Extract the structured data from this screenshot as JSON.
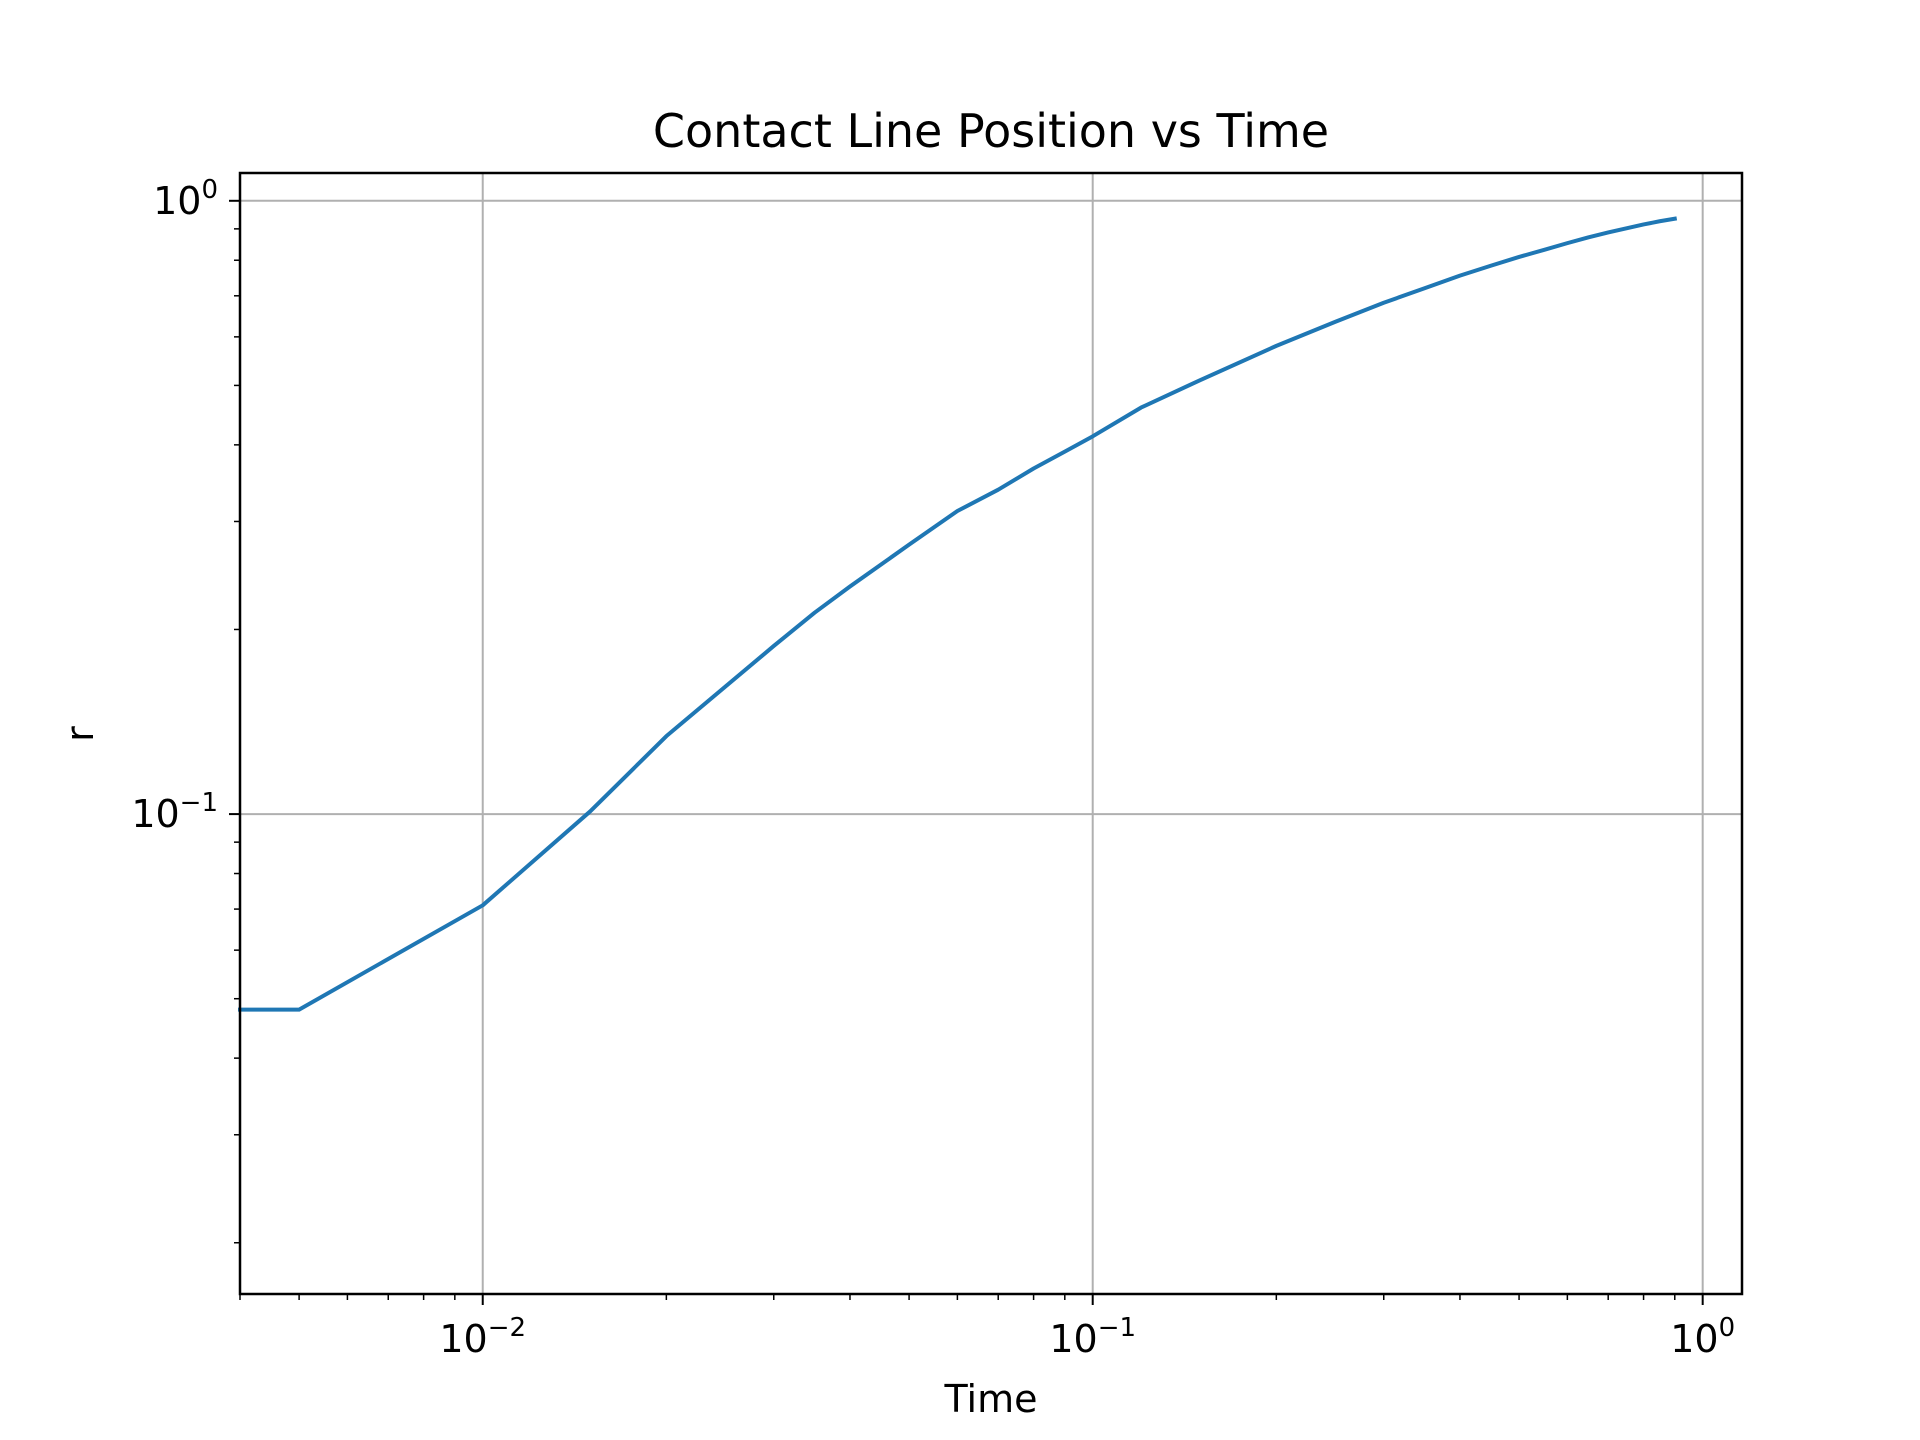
{
  "chart_data": {
    "type": "line",
    "title": "Contact Line Position vs Time",
    "xlabel": "Time",
    "ylabel": "r",
    "xscale": "log",
    "yscale": "log",
    "xlim": [
      0.004,
      1.16
    ],
    "ylim": [
      0.0165,
      1.11
    ],
    "grid": true,
    "x_ticks": [
      {
        "value": 0.01,
        "base": "10",
        "exp": "−2"
      },
      {
        "value": 0.1,
        "base": "10",
        "exp": "−1"
      },
      {
        "value": 1,
        "base": "10",
        "exp": "0"
      }
    ],
    "y_ticks": [
      {
        "value": 0.1,
        "base": "10",
        "exp": "−1"
      },
      {
        "value": 1,
        "base": "10",
        "exp": "0"
      }
    ],
    "colors": {
      "line": "#1f77b4",
      "grid": "#b0b0b0",
      "axes": "#000000"
    },
    "series": [
      {
        "x": [
          0.004,
          0.005,
          0.01,
          0.015,
          0.02,
          0.03,
          0.035,
          0.04,
          0.05,
          0.06,
          0.07,
          0.08,
          0.09,
          0.1,
          0.12,
          0.15,
          0.2,
          0.25,
          0.3,
          0.35,
          0.4,
          0.45,
          0.5,
          0.55,
          0.6,
          0.65,
          0.7,
          0.75,
          0.8,
          0.85,
          0.9
        ],
        "y": [
          0.048,
          0.048,
          0.071,
          0.101,
          0.134,
          0.188,
          0.213,
          0.235,
          0.275,
          0.312,
          0.338,
          0.366,
          0.39,
          0.413,
          0.46,
          0.51,
          0.58,
          0.635,
          0.682,
          0.72,
          0.755,
          0.784,
          0.81,
          0.832,
          0.853,
          0.872,
          0.888,
          0.902,
          0.915,
          0.926,
          0.935
        ]
      }
    ]
  }
}
